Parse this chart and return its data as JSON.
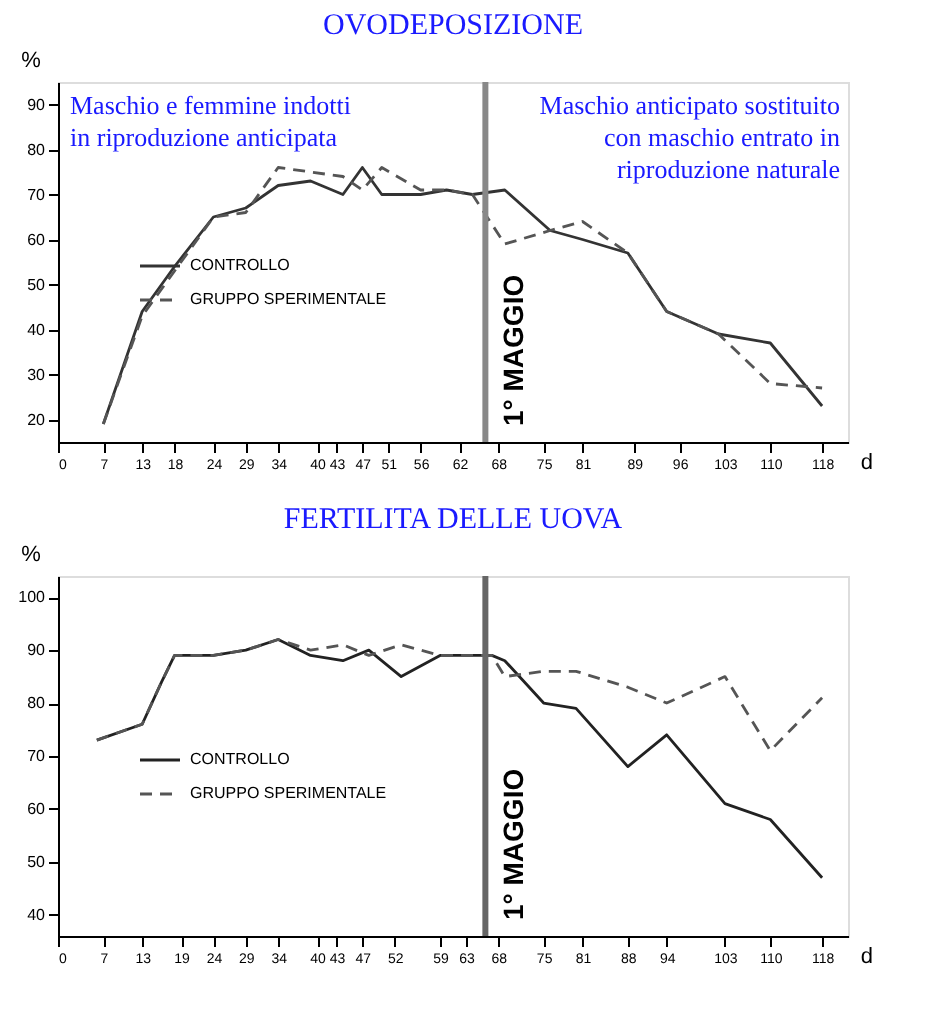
{
  "chart_data": [
    {
      "type": "line",
      "title": "OVODEPOSIZIONE",
      "xlabel": "d",
      "ylabel": "%",
      "xlim": [
        0,
        122
      ],
      "xticks": [
        0,
        7,
        13,
        18,
        24,
        29,
        34,
        40,
        43,
        47,
        51,
        56,
        62,
        68,
        75,
        81,
        89,
        96,
        103,
        110,
        118
      ],
      "ylim": [
        15,
        95
      ],
      "yticks": [
        20,
        30,
        40,
        50,
        60,
        70,
        80,
        90
      ],
      "legend": "left",
      "annotations": [
        "Maschio e femmine indotti\nin riproduzione anticipata",
        "Maschio anticipato sostituito\ncon maschio entrato in\nriproduzione naturale"
      ],
      "ref_lines": [
        {
          "axis": "x",
          "value": 66,
          "label": "1° MAGGIO",
          "color": "#888888"
        }
      ],
      "series": [
        {
          "name": "CONTROLLO",
          "color": "#333333",
          "line_style": "solid",
          "x": [
            7,
            13,
            18,
            24,
            29,
            34,
            39,
            44,
            47,
            50,
            56,
            60,
            64,
            69,
            76,
            81,
            88,
            94,
            102,
            110,
            118
          ],
          "values": [
            19,
            44,
            54,
            65,
            67,
            72,
            73,
            70,
            76,
            70,
            70,
            71,
            70,
            71,
            62,
            60,
            57,
            44,
            39,
            37,
            23
          ]
        },
        {
          "name": "GRUPPO SPERIMENTALE",
          "color": "#555555",
          "line_style": "dashed",
          "x": [
            7,
            13,
            18,
            24,
            29,
            34,
            39,
            44,
            47,
            50,
            56,
            60,
            64,
            69,
            76,
            81,
            88,
            94,
            102,
            110,
            118
          ],
          "values": [
            19,
            43,
            53,
            65,
            66,
            76,
            75,
            74,
            71,
            76,
            71,
            71,
            70,
            59,
            62,
            64,
            57,
            44,
            39,
            28,
            27
          ]
        }
      ]
    },
    {
      "type": "line",
      "title": "FERTILITA DELLE UOVA",
      "xlabel": "d",
      "ylabel": "%",
      "xlim": [
        0,
        122
      ],
      "xticks": [
        0,
        7,
        13,
        19,
        24,
        29,
        34,
        40,
        43,
        47,
        52,
        59,
        63,
        68,
        75,
        81,
        88,
        94,
        103,
        110,
        118
      ],
      "ylim": [
        36,
        104
      ],
      "yticks": [
        40,
        50,
        60,
        70,
        80,
        90,
        100
      ],
      "legend": "left",
      "ref_lines": [
        {
          "axis": "x",
          "value": 66,
          "label": "1° MAGGIO",
          "color": "#666666"
        }
      ],
      "series": [
        {
          "name": "CONTROLLO",
          "color": "#222222",
          "line_style": "solid",
          "x": [
            6,
            13,
            16,
            18,
            24,
            29,
            34,
            39,
            44,
            48,
            53,
            59,
            67,
            69,
            75,
            80,
            88,
            94,
            103,
            110,
            118
          ],
          "values": [
            73,
            76,
            84,
            89,
            89,
            90,
            92,
            89,
            88,
            90,
            85,
            89,
            89,
            88,
            80,
            79,
            68,
            74,
            61,
            58,
            47
          ]
        },
        {
          "name": "GRUPPO SPERIMENTALE",
          "color": "#555555",
          "line_style": "dashed",
          "x": [
            6,
            13,
            16,
            18,
            24,
            29,
            34,
            39,
            44,
            48,
            53,
            59,
            67,
            69,
            75,
            80,
            88,
            94,
            103,
            110,
            118
          ],
          "values": [
            73,
            76,
            84,
            89,
            89,
            90,
            92,
            90,
            91,
            89,
            91,
            89,
            89,
            85,
            86,
            86,
            83,
            80,
            85,
            71,
            81
          ]
        }
      ]
    }
  ]
}
